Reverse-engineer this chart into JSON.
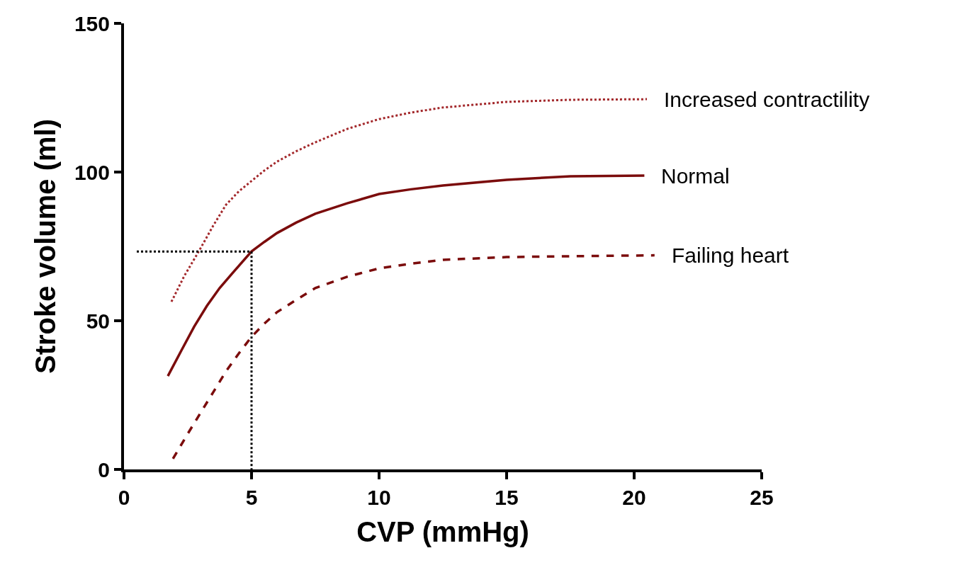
{
  "chart_data": {
    "type": "line",
    "xlabel": "CVP (mmHg)",
    "ylabel": "Stroke volume (ml)",
    "xlim": [
      0,
      25
    ],
    "xticks": [
      0,
      5,
      10,
      15,
      20,
      25
    ],
    "ylim": [
      0,
      150
    ],
    "yticks": [
      0,
      50,
      100,
      150
    ],
    "legend": false,
    "marker": "none",
    "series": [
      {
        "name": "Increased contractility",
        "color": "#a3282b",
        "line_style": "dotted",
        "x": [
          1.86,
          2.36,
          2.95,
          3.5,
          4,
          4.5,
          5,
          5.5,
          6,
          6.75,
          7.5,
          8.75,
          10,
          11.25,
          12.5,
          15,
          17.5,
          20.5
        ],
        "values": [
          56.4,
          65,
          73.6,
          82,
          89,
          93.5,
          97,
          100.5,
          103.5,
          107,
          110,
          114.5,
          117.8,
          120,
          121.7,
          123.6,
          124.3,
          124.5
        ]
      },
      {
        "name": "Normal",
        "color": "#7b0c0c",
        "line_style": "solid",
        "x": [
          1.72,
          2.25,
          2.75,
          3.25,
          3.75,
          4.25,
          5,
          5.5,
          6,
          6.75,
          7.5,
          8.75,
          10,
          11.25,
          12.5,
          15,
          17.5,
          20.4
        ],
        "values": [
          31.4,
          40,
          48,
          55,
          61,
          66,
          73.3,
          76.5,
          79.5,
          83,
          86,
          89.5,
          92.6,
          94.2,
          95.5,
          97.4,
          98.6,
          98.8
        ]
      },
      {
        "name": "Failing heart",
        "color": "#7b0c0c",
        "line_style": "dashed",
        "x": [
          1.92,
          2.5,
          3,
          3.5,
          4,
          4.5,
          5,
          5.5,
          6,
          6.75,
          7.5,
          8.75,
          10,
          11.25,
          12.5,
          15,
          17.5,
          20.8
        ],
        "values": [
          3.6,
          12,
          19,
          26,
          33,
          39,
          44.6,
          49,
          52.9,
          57,
          61,
          64.8,
          67.6,
          69.2,
          70.5,
          71.4,
          71.7,
          72
        ]
      },
      {
        "color": "#000000",
        "line_style": "dotted",
        "x": [
          0.5,
          5,
          5
        ],
        "values": [
          73.3,
          73.3,
          0
        ]
      }
    ]
  }
}
